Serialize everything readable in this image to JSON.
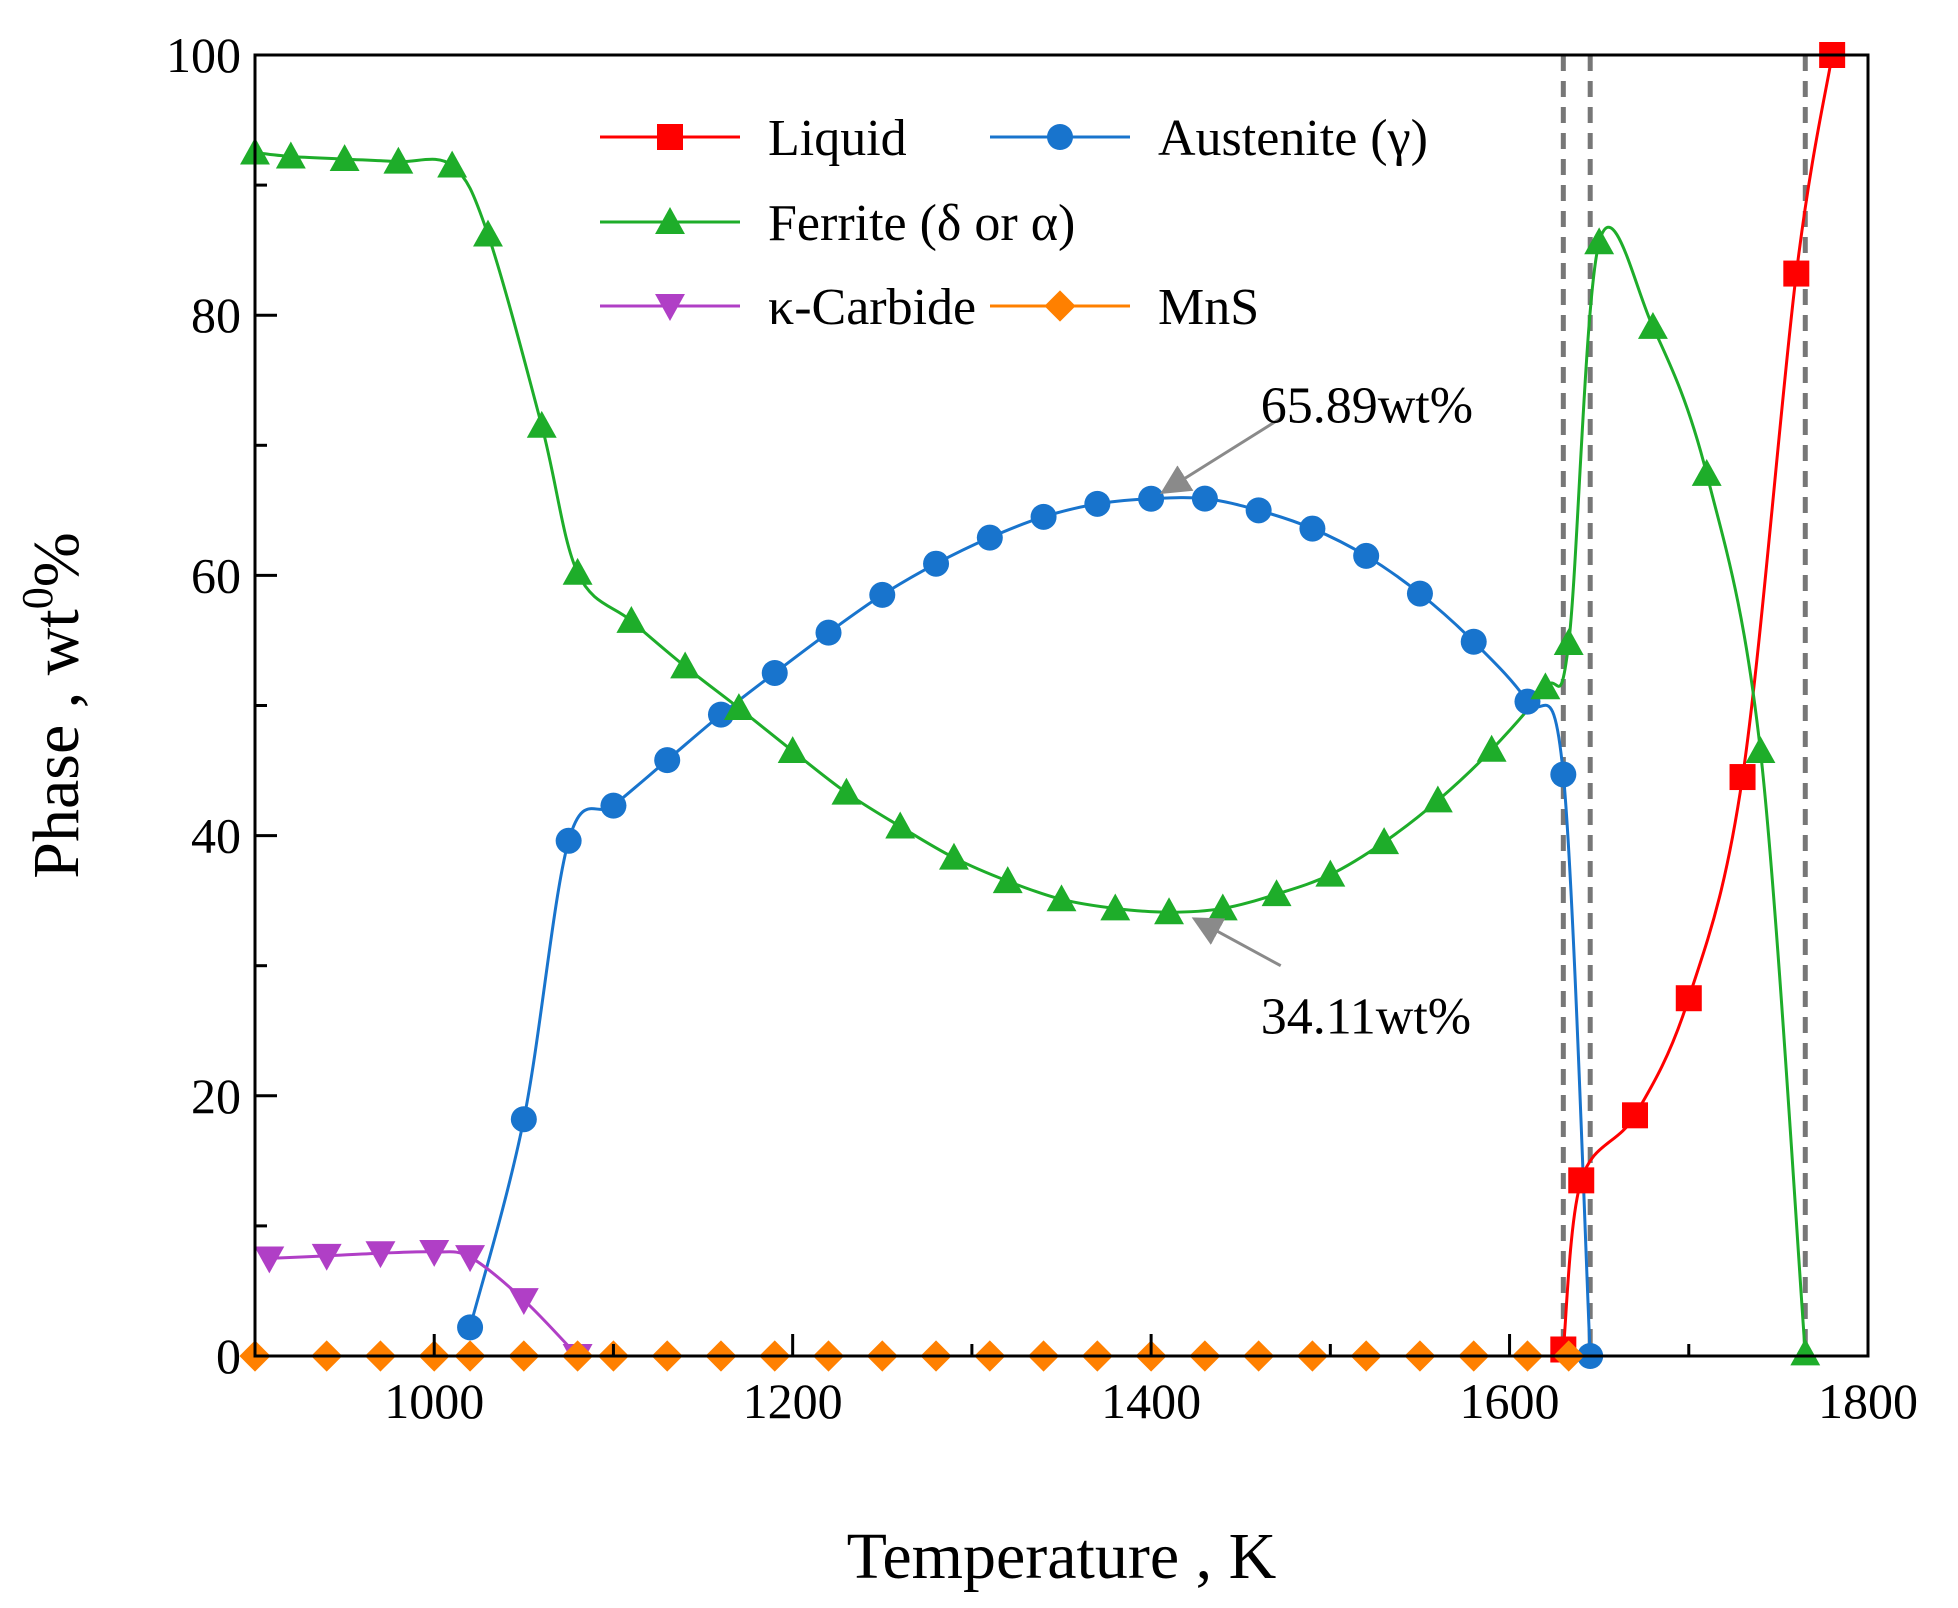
{
  "chart_data": {
    "type": "line",
    "xlabel": "Temperature , K",
    "ylabel": "Phase , wt",
    "ylabel_suffix": "%",
    "ylabel_superscript": "0",
    "xlim": [
      900,
      1800
    ],
    "ylim": [
      0,
      100
    ],
    "xticks": [
      1000,
      1200,
      1400,
      1600,
      1800
    ],
    "yticks": [
      0,
      20,
      40,
      60,
      80,
      100
    ],
    "xminor_step": 100,
    "yminor_step": 10,
    "reference_lines_x": [
      1630,
      1645,
      1765
    ],
    "series": [
      {
        "name": "Liquid",
        "color": "#ff0000",
        "marker": "square",
        "x": [
          1630,
          1640,
          1670,
          1700,
          1730,
          1760,
          1780
        ],
        "y": [
          0.5,
          13.5,
          18.5,
          27.5,
          44.5,
          83.2,
          100
        ]
      },
      {
        "name": "Austenite (γ)",
        "color": "#1874cd",
        "marker": "circle",
        "x": [
          1020,
          1050,
          1075,
          1100,
          1130,
          1160,
          1190,
          1220,
          1250,
          1280,
          1310,
          1340,
          1370,
          1400,
          1430,
          1460,
          1490,
          1520,
          1550,
          1580,
          1610,
          1630,
          1645
        ],
        "y": [
          2.2,
          18.2,
          39.6,
          42.3,
          45.8,
          49.3,
          52.5,
          55.6,
          58.5,
          60.9,
          62.9,
          64.5,
          65.5,
          65.89,
          65.9,
          65.0,
          63.6,
          61.5,
          58.6,
          54.9,
          50.3,
          44.7,
          0
        ]
      },
      {
        "name": "Ferrite (δ or α)",
        "color": "#1ead2a",
        "marker": "triangle-up",
        "x": [
          900,
          920,
          950,
          980,
          1010,
          1030,
          1060,
          1080,
          1110,
          1140,
          1170,
          1200,
          1230,
          1260,
          1290,
          1320,
          1350,
          1380,
          1410,
          1440,
          1470,
          1500,
          1530,
          1560,
          1590,
          1620,
          1633,
          1650,
          1680,
          1710,
          1740,
          1765
        ],
        "y": [
          92.5,
          92.2,
          92.0,
          91.8,
          91.5,
          86.2,
          71.5,
          60.2,
          56.5,
          53.0,
          49.8,
          46.5,
          43.3,
          40.7,
          38.3,
          36.5,
          35.1,
          34.4,
          34.11,
          34.4,
          35.5,
          37.0,
          39.5,
          42.7,
          46.6,
          51.4,
          54.8,
          85.6,
          79.1,
          67.8,
          46.5,
          0.2
        ]
      },
      {
        "name": "κ-Carbide",
        "color": "#b03fc6",
        "marker": "triangle-down",
        "x": [
          908,
          940,
          970,
          1000,
          1020,
          1050,
          1080
        ],
        "y": [
          7.5,
          7.7,
          7.9,
          8.0,
          7.6,
          4.3,
          0
        ]
      },
      {
        "name": "MnS",
        "color": "#ff8000",
        "marker": "diamond",
        "x": [
          900,
          940,
          970,
          1000,
          1020,
          1050,
          1080,
          1100,
          1130,
          1160,
          1190,
          1220,
          1250,
          1280,
          1310,
          1340,
          1370,
          1400,
          1430,
          1460,
          1490,
          1520,
          1550,
          1580,
          1610,
          1633
        ],
        "y": [
          0,
          0,
          0,
          0,
          0,
          0,
          0,
          0,
          0,
          0,
          0,
          0,
          0,
          0,
          0,
          0,
          0,
          0,
          0,
          0,
          0,
          0,
          0,
          0,
          0,
          0
        ]
      }
    ],
    "annotations": [
      {
        "text": "65.89wt%",
        "point": [
          1400,
          65.89
        ],
        "label_at": [
          1450,
          73
        ]
      },
      {
        "text": "34.11wt%",
        "point": [
          1420,
          34.11
        ],
        "label_at": [
          1450,
          26
        ]
      }
    ],
    "legend": {
      "placement": "top-right",
      "columns": 2
    }
  }
}
